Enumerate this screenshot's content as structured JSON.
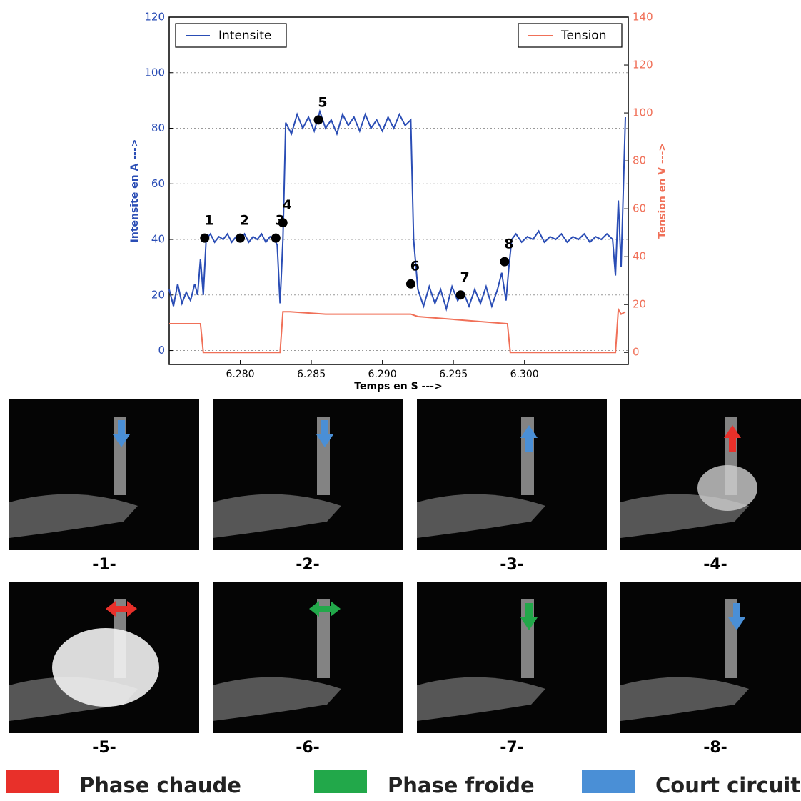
{
  "chart_data": {
    "type": "line",
    "xlabel": "Temps en S --->",
    "ylabel": "Intensite en A --->",
    "y2label": "Tension en V --->",
    "xlim": [
      6.275,
      6.3073
    ],
    "xticks": [
      {
        "value": 6.28,
        "label": "6.280"
      },
      {
        "value": 6.285,
        "label": "6.285"
      },
      {
        "value": 6.29,
        "label": "6.290"
      },
      {
        "value": 6.295,
        "label": "6.295"
      },
      {
        "value": 6.3,
        "label": "6.300"
      }
    ],
    "ylim": [
      -5,
      120
    ],
    "yticks": [
      0,
      20,
      40,
      60,
      80,
      100,
      120
    ],
    "y2lim": [
      -5,
      140
    ],
    "y2ticks": [
      0,
      20,
      40,
      60,
      80,
      100,
      120,
      140
    ],
    "grid": true,
    "series": [
      {
        "name": "Intensite",
        "color": "#2a4db5",
        "axis": "y",
        "x": [
          6.275,
          6.2753,
          6.2756,
          6.2759,
          6.2762,
          6.2765,
          6.2768,
          6.277,
          6.2772,
          6.2774,
          6.2776,
          6.2779,
          6.2782,
          6.2785,
          6.2788,
          6.2791,
          6.2794,
          6.2797,
          6.28,
          6.2803,
          6.2806,
          6.2809,
          6.2812,
          6.2815,
          6.2818,
          6.2821,
          6.2824,
          6.2826,
          6.2828,
          6.283,
          6.2832,
          6.2836,
          6.284,
          6.2844,
          6.2848,
          6.2852,
          6.2856,
          6.286,
          6.2864,
          6.2868,
          6.2872,
          6.2876,
          6.288,
          6.2884,
          6.2888,
          6.2892,
          6.2896,
          6.29,
          6.2904,
          6.2908,
          6.2912,
          6.2916,
          6.292,
          6.2922,
          6.2925,
          6.2929,
          6.2933,
          6.2937,
          6.2941,
          6.2945,
          6.2949,
          6.2953,
          6.2957,
          6.2961,
          6.2965,
          6.2969,
          6.2973,
          6.2977,
          6.2981,
          6.2984,
          6.2987,
          6.2989,
          6.2991,
          6.2994,
          6.2998,
          6.3002,
          6.3006,
          6.301,
          6.3014,
          6.3018,
          6.3022,
          6.3026,
          6.303,
          6.3034,
          6.3038,
          6.3042,
          6.3046,
          6.305,
          6.3054,
          6.3058,
          6.3062,
          6.3064,
          6.3066,
          6.3068,
          6.3071
        ],
        "values": [
          22,
          16,
          24,
          17,
          21,
          18,
          24,
          20,
          33,
          20,
          40,
          42,
          39,
          41,
          40,
          42,
          39,
          41,
          40,
          42,
          39,
          41,
          40,
          42,
          39,
          41,
          40,
          38,
          17,
          40,
          82,
          78,
          85,
          80,
          84,
          79,
          86,
          80,
          83,
          78,
          85,
          81,
          84,
          79,
          85,
          80,
          83,
          79,
          84,
          80,
          85,
          81,
          83,
          40,
          22,
          16,
          23,
          17,
          22,
          15,
          23,
          18,
          21,
          16,
          22,
          17,
          23,
          16,
          22,
          28,
          18,
          30,
          40,
          42,
          39,
          41,
          40,
          43,
          39,
          41,
          40,
          42,
          39,
          41,
          40,
          42,
          39,
          41,
          40,
          42,
          40,
          27,
          54,
          30,
          84
        ]
      },
      {
        "name": "Tension",
        "color": "#f07058",
        "axis": "y2",
        "x": [
          6.275,
          6.2772,
          6.2774,
          6.2828,
          6.283,
          6.2835,
          6.286,
          6.292,
          6.2925,
          6.2988,
          6.299,
          6.3064,
          6.3066,
          6.3068,
          6.3071
        ],
        "values": [
          12,
          12,
          0,
          0,
          17,
          17,
          16,
          16,
          15,
          12,
          0,
          0,
          18,
          16,
          17
        ]
      }
    ],
    "legend": [
      "upper left",
      "upper right"
    ],
    "annotations": [
      {
        "label": "1",
        "x": 6.2775,
        "y": 40.5
      },
      {
        "label": "2",
        "x": 6.28,
        "y": 40.5
      },
      {
        "label": "3",
        "x": 6.2825,
        "y": 40.5
      },
      {
        "label": "4",
        "x": 6.283,
        "y": 46
      },
      {
        "label": "5",
        "x": 6.2855,
        "y": 83
      },
      {
        "label": "6",
        "x": 6.292,
        "y": 24
      },
      {
        "label": "7",
        "x": 6.2955,
        "y": 20
      },
      {
        "label": "8",
        "x": 6.2986,
        "y": 32
      }
    ]
  },
  "panels": [
    {
      "label": "-1-"
    },
    {
      "label": "-2-"
    },
    {
      "label": "-3-"
    },
    {
      "label": "-4-"
    },
    {
      "label": "-5-"
    },
    {
      "label": "-6-"
    },
    {
      "label": "-7-"
    },
    {
      "label": "-8-"
    }
  ],
  "phase_legend": [
    {
      "name": "Phase chaude",
      "color": "#e8302a"
    },
    {
      "name": "Phase froide",
      "color": "#22a84a"
    },
    {
      "name": "Court circuit",
      "color": "#4a8fd6"
    }
  ]
}
